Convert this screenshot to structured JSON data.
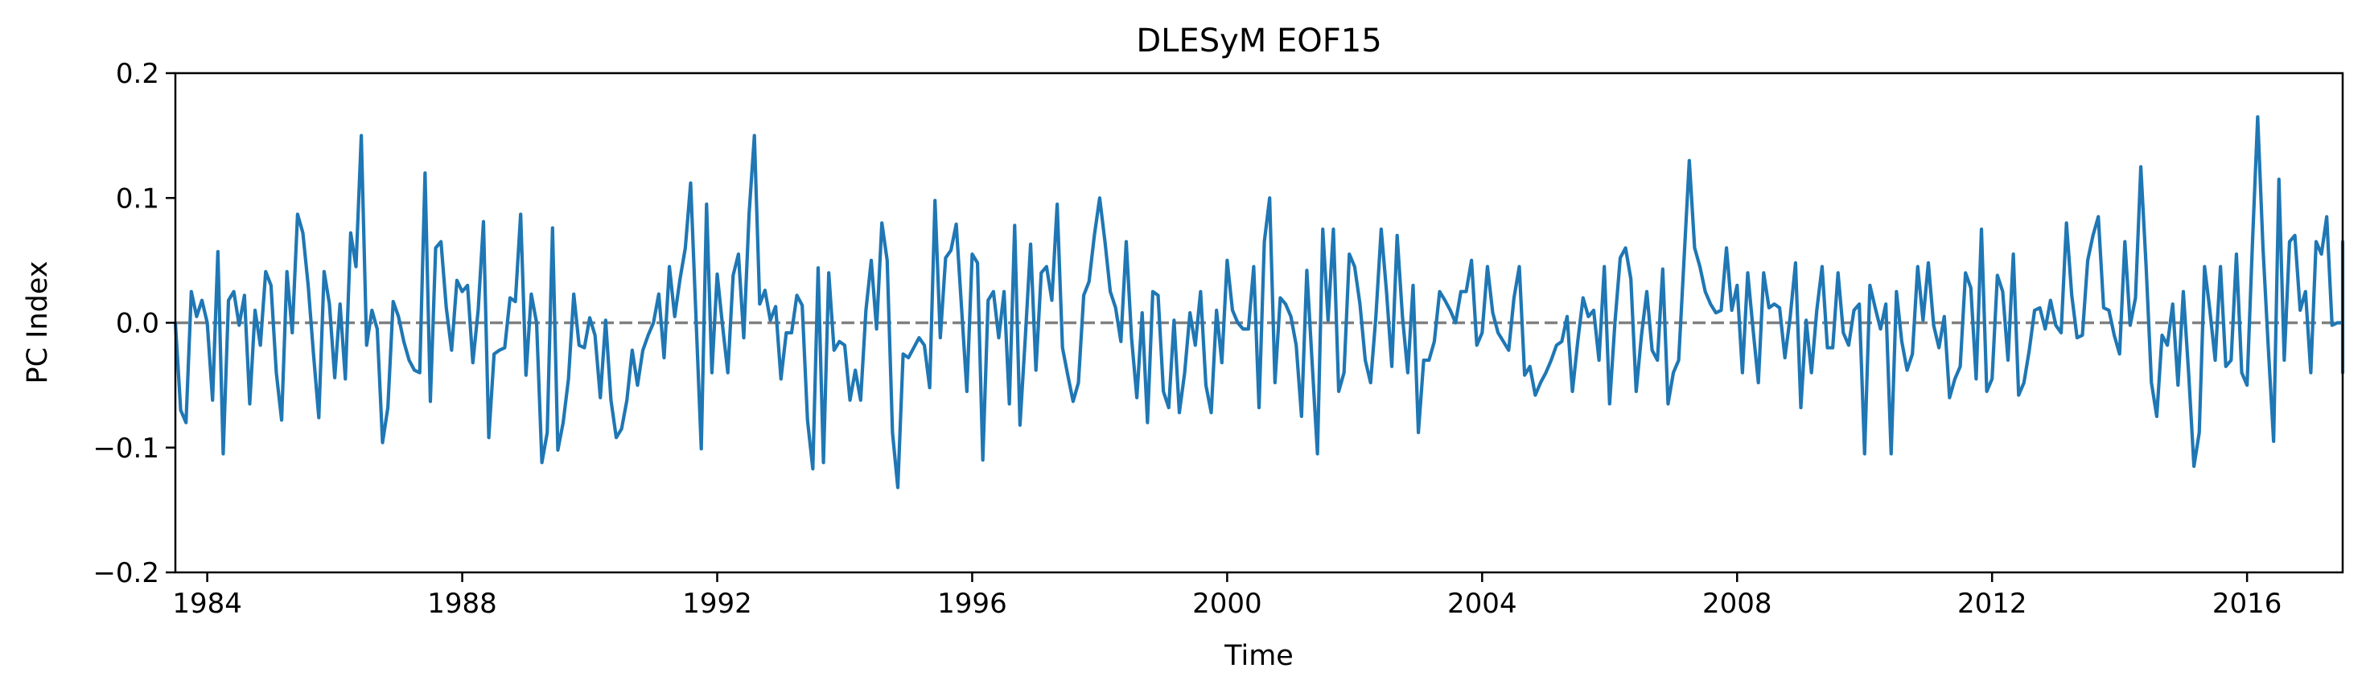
{
  "chart_data": {
    "type": "line",
    "title": "DLESyM  EOF15",
    "xlabel": "Time",
    "ylabel": "PC Index",
    "xlim": [
      1983.5,
      2017.5
    ],
    "ylim": [
      -0.2,
      0.2
    ],
    "x_ticks": [
      "1984",
      "1988",
      "1992",
      "1996",
      "2000",
      "2004",
      "2008",
      "2012",
      "2016"
    ],
    "y_ticks": [
      "−0.2",
      "−0.1",
      "0.0",
      "0.1",
      "0.2"
    ],
    "y_tick_values": [
      -0.2,
      -0.1,
      0.0,
      0.1,
      0.2
    ],
    "grid": false,
    "reference_line": {
      "y": 0.0,
      "style": "dashed",
      "color": "#808080"
    },
    "series": [
      {
        "color": "#1f77b4",
        "start_year": 1983.5,
        "step_months": 1,
        "values": [
          0.0,
          -0.07,
          -0.08,
          0.025,
          0.005,
          0.018,
          0.0,
          -0.062,
          0.057,
          -0.105,
          0.018,
          0.025,
          -0.002,
          0.022,
          -0.065,
          0.01,
          -0.018,
          0.041,
          0.03,
          -0.04,
          -0.078,
          0.041,
          -0.008,
          0.087,
          0.072,
          0.03,
          -0.025,
          -0.076,
          0.041,
          0.015,
          -0.044,
          0.015,
          -0.045,
          0.072,
          0.045,
          0.15,
          -0.018,
          0.01,
          -0.005,
          -0.096,
          -0.068,
          0.017,
          0.005,
          -0.015,
          -0.03,
          -0.038,
          -0.04,
          0.12,
          -0.063,
          0.06,
          0.065,
          0.012,
          -0.022,
          0.034,
          0.025,
          0.03,
          -0.032,
          0.01,
          0.081,
          -0.092,
          -0.025,
          -0.022,
          -0.02,
          0.02,
          0.017,
          0.087,
          -0.042,
          0.023,
          0.0,
          -0.112,
          -0.088,
          0.076,
          -0.102,
          -0.08,
          -0.045,
          0.023,
          -0.018,
          -0.02,
          0.004,
          -0.01,
          -0.06,
          0.002,
          -0.062,
          -0.092,
          -0.085,
          -0.062,
          -0.022,
          -0.05,
          -0.022,
          -0.01,
          0.0,
          0.023,
          -0.028,
          0.045,
          0.005,
          0.035,
          0.06,
          0.112,
          0.005,
          -0.101,
          0.095,
          -0.04,
          0.039,
          -0.002,
          -0.04,
          0.038,
          0.055,
          -0.012,
          0.087,
          0.15,
          0.015,
          0.026,
          0.002,
          0.013,
          -0.045,
          -0.008,
          -0.008,
          0.022,
          0.014,
          -0.078,
          -0.117,
          0.044,
          -0.112,
          0.04,
          -0.022,
          -0.015,
          -0.018,
          -0.062,
          -0.038,
          -0.062,
          0.01,
          0.05,
          -0.005,
          0.08,
          0.05,
          -0.088,
          -0.132,
          -0.025,
          -0.028,
          -0.02,
          -0.012,
          -0.018,
          -0.052,
          0.098,
          -0.012,
          0.052,
          0.058,
          0.079,
          0.012,
          -0.055,
          0.055,
          0.048,
          -0.11,
          0.018,
          0.025,
          -0.012,
          0.025,
          -0.065,
          0.078,
          -0.082,
          -0.012,
          0.063,
          -0.038,
          0.04,
          0.045,
          0.018,
          0.095,
          -0.02,
          -0.042,
          -0.063,
          -0.048,
          0.022,
          0.033,
          0.07,
          0.1,
          0.065,
          0.025,
          0.012,
          -0.015,
          0.065,
          -0.012,
          -0.06,
          0.008,
          -0.08,
          0.025,
          0.022,
          -0.055,
          -0.068,
          0.002,
          -0.072,
          -0.04,
          0.008,
          -0.018,
          0.025,
          -0.05,
          -0.072,
          0.01,
          -0.032,
          0.05,
          0.01,
          0.0,
          -0.005,
          -0.005,
          0.045,
          -0.068,
          0.065,
          0.1,
          -0.048,
          0.02,
          0.015,
          0.005,
          -0.018,
          -0.075,
          0.042,
          -0.032,
          -0.105,
          0.075,
          0.002,
          0.075,
          -0.055,
          -0.04,
          0.055,
          0.045,
          0.015,
          -0.03,
          -0.048,
          0.005,
          0.075,
          0.025,
          -0.035,
          0.07,
          0.005,
          -0.04,
          0.03,
          -0.088,
          -0.03,
          -0.03,
          -0.015,
          0.025,
          0.018,
          0.01,
          0.0,
          0.025,
          0.025,
          0.05,
          -0.018,
          -0.008,
          0.045,
          0.008,
          -0.008,
          -0.015,
          -0.022,
          0.02,
          0.045,
          -0.042,
          -0.035,
          -0.058,
          -0.048,
          -0.04,
          -0.03,
          -0.018,
          -0.015,
          0.005,
          -0.055,
          -0.015,
          0.02,
          0.005,
          0.01,
          -0.03,
          0.045,
          -0.065,
          0.0,
          0.052,
          0.06,
          0.035,
          -0.055,
          -0.01,
          0.025,
          -0.022,
          -0.03,
          0.043,
          -0.065,
          -0.04,
          -0.03,
          0.05,
          0.13,
          0.06,
          0.045,
          0.025,
          0.015,
          0.008,
          0.01,
          0.06,
          0.01,
          0.03,
          -0.04,
          0.04,
          -0.005,
          -0.048,
          0.04,
          0.012,
          0.015,
          0.012,
          -0.028,
          0.005,
          0.048,
          -0.068,
          0.002,
          -0.04,
          0.01,
          0.045,
          -0.02,
          -0.02,
          0.04,
          -0.008,
          -0.018,
          0.01,
          0.015,
          -0.105,
          0.03,
          0.012,
          -0.005,
          0.015,
          -0.105,
          0.025,
          -0.015,
          -0.038,
          -0.025,
          0.045,
          0.002,
          0.048,
          -0.002,
          -0.02,
          0.005,
          -0.06,
          -0.045,
          -0.035,
          0.04,
          0.028,
          -0.045,
          0.075,
          -0.055,
          -0.045,
          0.038,
          0.025,
          -0.03,
          0.055,
          -0.058,
          -0.048,
          -0.022,
          0.01,
          0.012,
          -0.005,
          0.018,
          -0.002,
          -0.008,
          0.08,
          0.022,
          -0.012,
          -0.01,
          0.05,
          0.07,
          0.085,
          0.012,
          0.01,
          -0.01,
          -0.025,
          0.065,
          -0.002,
          0.02,
          0.125,
          0.045,
          -0.048,
          -0.075,
          -0.01,
          -0.018,
          0.015,
          -0.05,
          0.025,
          -0.04,
          -0.115,
          -0.088,
          0.045,
          0.01,
          -0.03,
          0.045,
          -0.035,
          -0.03,
          0.055,
          -0.04,
          -0.05,
          0.062,
          0.165,
          0.06,
          -0.02,
          -0.095,
          0.115,
          -0.03,
          0.065,
          0.07,
          0.01,
          0.025,
          -0.04,
          0.065,
          0.055,
          0.085,
          -0.002,
          0.0,
          0.0,
          -0.002,
          -0.002,
          -0.022,
          0.0,
          -0.03,
          0.065,
          -0.04,
          0.01
        ]
      }
    ]
  }
}
